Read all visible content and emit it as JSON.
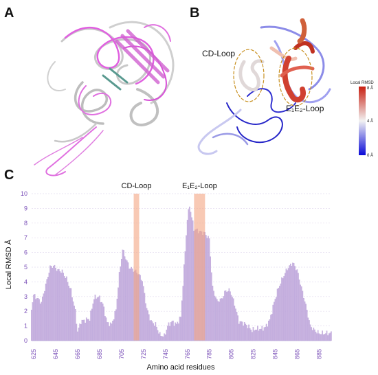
{
  "panels": {
    "a": "A",
    "b": "B",
    "c": "C"
  },
  "structure_b": {
    "label_cd": "CD-Loop",
    "label_e1e2": "E₁E₂-Loop",
    "colorbar_title": "Local RMSD",
    "colorbar_top": "8 Å",
    "colorbar_mid": "4 Å",
    "colorbar_bottom": "0 Å"
  },
  "colors": {
    "bar": "#c9b4e0",
    "bar_stroke": "#a98bd0",
    "highlight": "#f4a582",
    "tick": "#7a4fb8",
    "magenta": "#e060e0",
    "blue": "#2020d0",
    "red": "#d03020"
  },
  "chart_data": {
    "type": "bar",
    "xlabel": "Amino acid residues",
    "ylabel": "Local RMSD Å",
    "xlim": [
      623,
      896
    ],
    "ylim": [
      0,
      10
    ],
    "xticks": [
      625,
      645,
      665,
      685,
      705,
      725,
      745,
      765,
      785,
      805,
      825,
      845,
      865,
      885
    ],
    "yticks": [
      0,
      1,
      2,
      3,
      4,
      5,
      6,
      7,
      8,
      9,
      10
    ],
    "highlights": [
      {
        "label": "CD-Loop",
        "start": 716,
        "end": 721
      },
      {
        "label": "E₁E₂-Loop",
        "start": 771,
        "end": 781
      }
    ],
    "profile": [
      [
        623,
        2.2
      ],
      [
        625,
        3.1
      ],
      [
        628,
        2.9
      ],
      [
        632,
        2.6
      ],
      [
        636,
        3.8
      ],
      [
        640,
        5.0
      ],
      [
        643,
        5.1
      ],
      [
        647,
        4.8
      ],
      [
        651,
        4.7
      ],
      [
        655,
        4.2
      ],
      [
        659,
        3.4
      ],
      [
        663,
        2.0
      ],
      [
        665,
        0.6
      ],
      [
        668,
        1.3
      ],
      [
        672,
        1.4
      ],
      [
        676,
        1.5
      ],
      [
        680,
        2.9
      ],
      [
        684,
        3.0
      ],
      [
        688,
        2.5
      ],
      [
        692,
        1.2
      ],
      [
        696,
        1.1
      ],
      [
        700,
        2.1
      ],
      [
        703,
        4.5
      ],
      [
        706,
        6.2
      ],
      [
        709,
        5.6
      ],
      [
        712,
        5.0
      ],
      [
        716,
        4.8
      ],
      [
        720,
        4.6
      ],
      [
        724,
        4.1
      ],
      [
        728,
        2.2
      ],
      [
        732,
        1.3
      ],
      [
        736,
        1.1
      ],
      [
        740,
        0.4
      ],
      [
        744,
        0.3
      ],
      [
        747,
        1.0
      ],
      [
        751,
        1.3
      ],
      [
        755,
        1.1
      ],
      [
        759,
        1.6
      ],
      [
        762,
        5.0
      ],
      [
        765,
        8.3
      ],
      [
        767,
        9.2
      ],
      [
        769,
        8.4
      ],
      [
        771,
        7.6
      ],
      [
        774,
        7.5
      ],
      [
        777,
        7.4
      ],
      [
        781,
        7.3
      ],
      [
        785,
        6.9
      ],
      [
        788,
        3.6
      ],
      [
        792,
        2.7
      ],
      [
        796,
        2.8
      ],
      [
        800,
        3.4
      ],
      [
        804,
        3.4
      ],
      [
        808,
        2.5
      ],
      [
        812,
        1.3
      ],
      [
        816,
        1.2
      ],
      [
        820,
        1.0
      ],
      [
        824,
        0.7
      ],
      [
        828,
        0.8
      ],
      [
        832,
        0.8
      ],
      [
        836,
        0.9
      ],
      [
        840,
        1.4
      ],
      [
        844,
        2.6
      ],
      [
        848,
        3.6
      ],
      [
        852,
        4.3
      ],
      [
        856,
        4.9
      ],
      [
        861,
        5.3
      ],
      [
        865,
        4.8
      ],
      [
        869,
        3.6
      ],
      [
        873,
        2.4
      ],
      [
        877,
        1.0
      ],
      [
        881,
        0.7
      ],
      [
        885,
        0.5
      ],
      [
        889,
        0.5
      ],
      [
        894,
        0.5
      ]
    ]
  }
}
